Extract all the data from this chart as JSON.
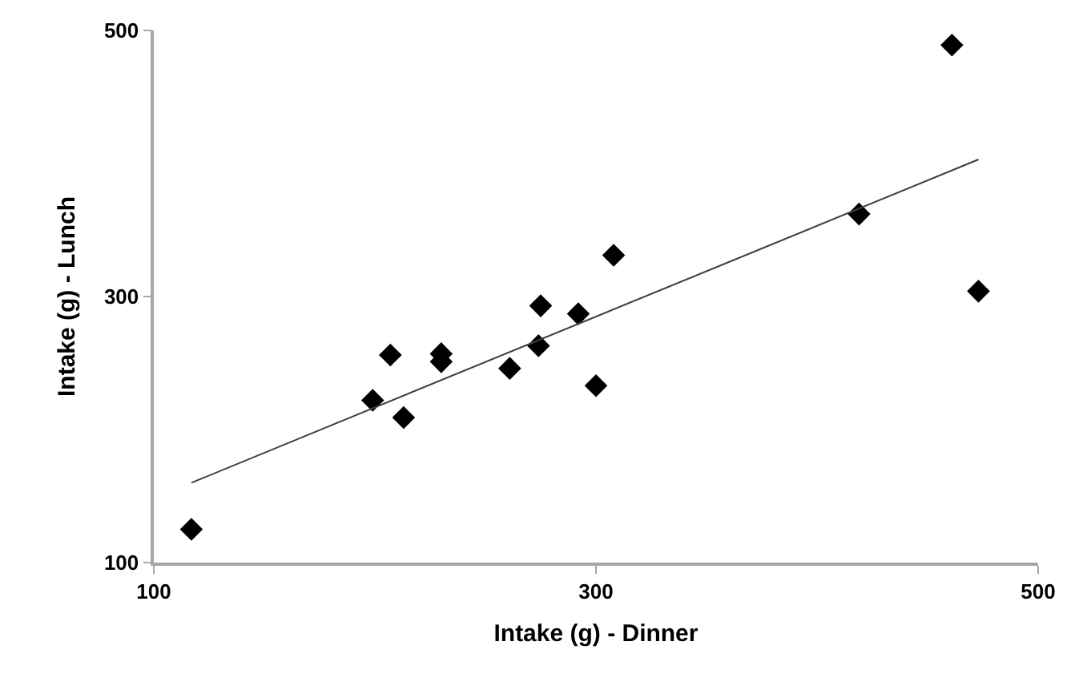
{
  "chart_data": {
    "type": "scatter",
    "xlabel": "Intake (g) - Dinner",
    "ylabel": "Intake (g) - Lunch",
    "xlim": [
      100,
      500
    ],
    "xticks": [
      100,
      300,
      500
    ],
    "ylim": [
      100,
      500
    ],
    "yticks": [
      100,
      300,
      500
    ],
    "series": [
      {
        "color": "#000000",
        "marker": "diamond",
        "x": [
          117,
          199,
          207,
          213,
          230,
          230,
          261,
          274,
          275,
          292,
          300,
          308,
          419,
          461,
          473
        ],
        "values": [
          125,
          222,
          256,
          209,
          257,
          251,
          246,
          263,
          293,
          287,
          233,
          331,
          362,
          489,
          304
        ]
      },
      {
        "type": "line",
        "color": "#404040",
        "marker": "none",
        "x": [
          117,
          473
        ],
        "values": [
          160,
          403
        ]
      }
    ]
  }
}
